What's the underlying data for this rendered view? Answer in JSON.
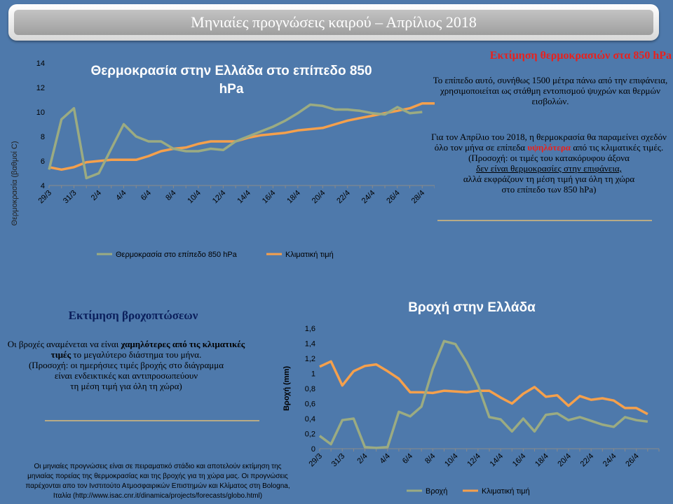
{
  "header": {
    "title": "Μηνιαίες προγνώσεις καιρού – Απρίλιος 2018"
  },
  "temp_panel": {
    "heading": "Εκτίμηση θερμοκρασιών στα 850 hPa",
    "para1": "Το επίπεδο αυτό, συνήθως 1500 μέτρα πάνω από την επιφάνεια, χρησιμοποιείται ως στάθμη  εντοπισμού ψυχρών και θερμών εισβολών.",
    "para2_pre": "Για τον Απρίλιο του 2018, η θερμοκρασία θα παραμείνει σχεδόν όλο τον μήνα σε επίπεδα",
    "para2_emph": "υψηλότερα",
    "para2_post": "από τις κλιματικές τιμές.",
    "note_line1": "(Προσοχή: οι τιμές του  κατακόρυφου άξονα",
    "note_line2": "δεν είναι θερμοκρασίες στην επιφάνεια,",
    "note_line3": "αλλά εκφράζουν τη μέση τιμή για όλη τη χώρα",
    "note_line4": "στο επίπεδο των 850 hPa)"
  },
  "rain_panel": {
    "heading": "Εκτίμηση βροχοπτώσεων",
    "para_pre": "Οι βροχές αναμένεται να είναι",
    "para_emph": "χαμηλότερες από τις κλιματικές τιμές",
    "para_post": "το μεγαλύτερο διάστημα του μήνα.",
    "note_line1": "(Προσοχή: οι ημερήσιες τιμές βροχής στο διάγραμμα",
    "note_line2": "είναι ενδεικτικές και  αντιπροσωπεύουν",
    "note_line3": "τη μέση τιμή για όλη τη χώρα)"
  },
  "footer": {
    "line1": "Οι μηνιαίες προγνώσεις  είναι σε πειραματικό στάδιο και αποτελούν  εκτίμηση της",
    "line2": "μηνιαίας πορείας της θερμοκρασίας  και της βροχής για τη χώρα μας. Οι προγνώσεις",
    "line3": "παρέχονται απο τον Ινστιτούτο Ατμοσφαιρικών  Επιστημών και Κλίματος στη Bologna,",
    "line4": "Ιταλία (http://www.isac.cnr.it/dinamica/projects/forecasts/globo.html)"
  },
  "colors": {
    "series_main": "#9bab82",
    "series_clim": "#f5a04c",
    "red_text": "#e8211d",
    "navy_text": "#0b1f5c",
    "background": "#4e79ab"
  },
  "chart_data": [
    {
      "type": "line",
      "title_line1": "Θερμοκρασία στην Ελλάδα στο επίπεδο 850",
      "title_line2": "hPa",
      "ylabel": "Θερμοκρασία  (βαθμοί  C)",
      "xlabel": "",
      "ylim": [
        4,
        14
      ],
      "yticks": [
        "4",
        "6",
        "8",
        "10",
        "12",
        "14"
      ],
      "categories": [
        "29/3",
        "30/3",
        "31/3",
        "1/4",
        "2/4",
        "3/4",
        "4/4",
        "5/4",
        "6/4",
        "7/4",
        "8/4",
        "9/4",
        "10/4",
        "11/4",
        "12/4",
        "13/4",
        "14/4",
        "15/4",
        "16/4",
        "17/4",
        "18/4",
        "19/4",
        "20/4",
        "21/4",
        "22/4",
        "23/4",
        "24/4",
        "25/4",
        "26/4",
        "27/4",
        "28/4",
        "29/4"
      ],
      "tick_labels": [
        "29/3",
        "",
        "31/3",
        "",
        "2/4",
        "",
        "4/4",
        "",
        "6/4",
        "",
        "8/4",
        "",
        "10/4",
        "",
        "12/4",
        "",
        "14/4",
        "",
        "16/4",
        "",
        "18/4",
        "",
        "20/4",
        "",
        "22/4",
        "",
        "24/4",
        "",
        "26/4",
        "",
        "28/4",
        ""
      ],
      "legend_position": "bottom",
      "series": [
        {
          "name": "Θερμοκρασία  στο επίπεδο 850 hPa",
          "color": "#9bab82",
          "values": [
            5.3,
            9.4,
            10.3,
            4.6,
            5.0,
            7.0,
            9.0,
            8.0,
            7.6,
            7.6,
            7.0,
            6.8,
            6.8,
            7.0,
            6.9,
            7.6,
            8.0,
            8.4,
            8.8,
            9.3,
            9.9,
            10.6,
            10.5,
            10.2,
            10.2,
            10.1,
            9.9,
            9.8,
            10.4,
            9.9,
            10.0,
            null
          ]
        },
        {
          "name": "Κλιματική  τιμή",
          "color": "#f5a04c",
          "values": [
            5.5,
            5.3,
            5.5,
            5.9,
            6.0,
            6.1,
            6.1,
            6.1,
            6.4,
            6.8,
            7.0,
            7.1,
            7.4,
            7.6,
            7.6,
            7.6,
            7.9,
            8.1,
            8.2,
            8.3,
            8.5,
            8.6,
            8.7,
            9.0,
            9.3,
            9.5,
            9.7,
            9.9,
            10.1,
            10.3,
            10.7,
            10.7
          ]
        }
      ]
    },
    {
      "type": "line",
      "title": "Βροχή στην Ελλάδα",
      "ylabel": "Βροχή  (mm)",
      "xlabel": "",
      "ylim": [
        0,
        1.6
      ],
      "yticks": [
        "0",
        "0,2",
        "0,4",
        "0,6",
        "0,8",
        "1",
        "1,2",
        "1,4",
        "1,6"
      ],
      "categories": [
        "29/3",
        "30/3",
        "31/3",
        "1/4",
        "2/4",
        "3/4",
        "4/4",
        "5/4",
        "6/4",
        "7/4",
        "8/4",
        "9/4",
        "10/4",
        "11/4",
        "12/4",
        "13/4",
        "14/4",
        "15/4",
        "16/4",
        "17/4",
        "18/4",
        "19/4",
        "20/4",
        "21/4",
        "22/4",
        "23/4",
        "24/4",
        "25/4",
        "26/4",
        "27/4",
        "28/4"
      ],
      "tick_labels": [
        "29/3",
        "",
        "31/3",
        "",
        "2/4",
        "",
        "4/4",
        "",
        "6/4",
        "",
        "8/4",
        "",
        "10/4",
        "",
        "12/4",
        "",
        "14/4",
        "",
        "16/4",
        "",
        "18/4",
        "",
        "20/4",
        "",
        "22/4",
        "",
        "24/4",
        "",
        "26/4",
        "",
        ""
      ],
      "legend_position": "bottom",
      "series": [
        {
          "name": "Βροχή",
          "color": "#9bab82",
          "values": [
            0.17,
            0.06,
            0.38,
            0.4,
            0.02,
            0.01,
            0.02,
            0.49,
            0.43,
            0.56,
            1.06,
            1.43,
            1.39,
            1.15,
            0.84,
            0.42,
            0.39,
            0.23,
            0.4,
            0.23,
            0.45,
            0.47,
            0.38,
            0.42,
            0.37,
            0.32,
            0.29,
            0.42,
            0.38,
            0.36,
            null
          ]
        },
        {
          "name": "Κλιματική  τιμή",
          "color": "#f5a04c",
          "values": [
            1.09,
            1.16,
            0.84,
            1.03,
            1.1,
            1.12,
            1.03,
            0.93,
            0.75,
            0.75,
            0.74,
            0.77,
            0.76,
            0.75,
            0.77,
            0.77,
            0.68,
            0.6,
            0.73,
            0.82,
            0.69,
            0.71,
            0.57,
            0.7,
            0.65,
            0.67,
            0.64,
            0.54,
            0.54,
            0.46,
            null
          ]
        }
      ]
    }
  ]
}
